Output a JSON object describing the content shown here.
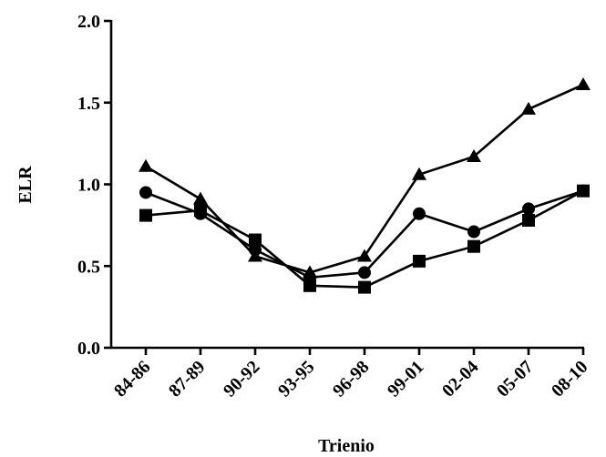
{
  "chart_data": {
    "type": "line",
    "title": "",
    "xlabel": "Trienio",
    "ylabel": "ELR",
    "categories": [
      "84-86",
      "87-89",
      "90-92",
      "93-95",
      "96-98",
      "99-01",
      "02-04",
      "05-07",
      "08-10"
    ],
    "ylim": [
      0.0,
      2.0
    ],
    "yticks": [
      "0.0",
      "0.5",
      "1.0",
      "1.5",
      "2.0"
    ],
    "grid": false,
    "legend": "none",
    "series": [
      {
        "marker": "triangle",
        "values": [
          1.11,
          0.91,
          0.56,
          0.46,
          0.56,
          1.06,
          1.17,
          1.46,
          1.61
        ]
      },
      {
        "marker": "circle",
        "values": [
          0.95,
          0.82,
          0.6,
          0.43,
          0.46,
          0.82,
          0.71,
          0.85,
          0.96
        ]
      },
      {
        "marker": "square",
        "values": [
          0.81,
          0.84,
          0.66,
          0.38,
          0.37,
          0.53,
          0.62,
          0.78,
          0.96
        ]
      }
    ],
    "color": "#000000"
  }
}
